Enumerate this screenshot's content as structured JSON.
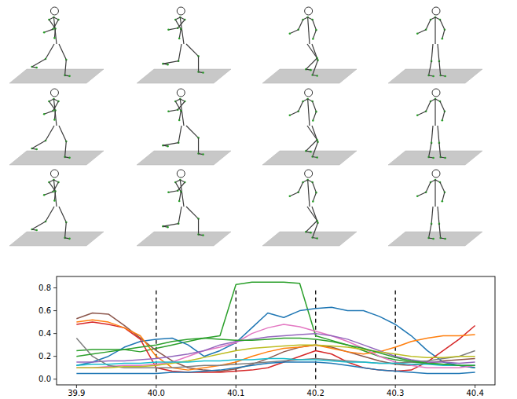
{
  "chart_data": {
    "type": "line",
    "x": [
      39.9,
      39.92,
      39.94,
      39.96,
      39.98,
      40.0,
      40.02,
      40.04,
      40.06,
      40.08,
      40.1,
      40.12,
      40.14,
      40.16,
      40.18,
      40.2,
      40.22,
      40.24,
      40.26,
      40.28,
      40.3,
      40.32,
      40.34,
      40.36,
      40.38,
      40.4
    ],
    "series": [
      {
        "color": "#2ca02c",
        "values": [
          0.25,
          0.26,
          0.26,
          0.26,
          0.24,
          0.27,
          0.3,
          0.33,
          0.36,
          0.38,
          0.83,
          0.85,
          0.85,
          0.85,
          0.84,
          0.38,
          0.34,
          0.3,
          0.25,
          0.2,
          0.17,
          0.15,
          0.14,
          0.13,
          0.12,
          0.1
        ]
      },
      {
        "color": "#1f77b4",
        "values": [
          0.12,
          0.15,
          0.2,
          0.28,
          0.33,
          0.35,
          0.36,
          0.3,
          0.2,
          0.25,
          0.32,
          0.45,
          0.58,
          0.54,
          0.6,
          0.62,
          0.63,
          0.6,
          0.6,
          0.55,
          0.48,
          0.38,
          0.25,
          0.15,
          0.12,
          0.1
        ]
      },
      {
        "color": "#8c564b",
        "values": [
          0.53,
          0.58,
          0.57,
          0.47,
          0.36,
          0.25,
          0.16,
          0.1,
          0.08,
          0.07,
          0.09,
          0.13,
          0.18,
          0.24,
          0.28,
          0.3,
          0.28,
          0.24,
          0.2,
          0.16,
          0.13,
          0.12,
          0.14,
          0.16,
          0.17,
          0.18
        ]
      },
      {
        "color": "#d62728",
        "values": [
          0.48,
          0.5,
          0.48,
          0.45,
          0.35,
          0.1,
          0.07,
          0.06,
          0.06,
          0.06,
          0.07,
          0.08,
          0.1,
          0.15,
          0.2,
          0.25,
          0.22,
          0.15,
          0.1,
          0.08,
          0.07,
          0.08,
          0.15,
          0.25,
          0.35,
          0.47
        ]
      },
      {
        "color": "#ff7f0e",
        "values": [
          0.5,
          0.52,
          0.5,
          0.45,
          0.38,
          0.2,
          0.1,
          0.08,
          0.1,
          0.12,
          0.15,
          0.2,
          0.24,
          0.27,
          0.28,
          0.3,
          0.27,
          0.24,
          0.22,
          0.24,
          0.28,
          0.33,
          0.36,
          0.38,
          0.38,
          0.39
        ]
      },
      {
        "color": "#e377c2",
        "values": [
          0.1,
          0.1,
          0.11,
          0.12,
          0.12,
          0.13,
          0.15,
          0.2,
          0.25,
          0.28,
          0.32,
          0.4,
          0.45,
          0.48,
          0.46,
          0.42,
          0.38,
          0.33,
          0.27,
          0.2,
          0.15,
          0.12,
          0.1,
          0.1,
          0.1,
          0.12
        ]
      },
      {
        "color": "#9467bd",
        "values": [
          0.15,
          0.15,
          0.16,
          0.16,
          0.17,
          0.18,
          0.2,
          0.22,
          0.25,
          0.3,
          0.33,
          0.35,
          0.37,
          0.38,
          0.39,
          0.4,
          0.38,
          0.35,
          0.3,
          0.25,
          0.2,
          0.17,
          0.15,
          0.15,
          0.14,
          0.15
        ]
      },
      {
        "color": "#7f7f7f",
        "values": [
          0.36,
          0.2,
          0.12,
          0.1,
          0.1,
          0.1,
          0.1,
          0.11,
          0.12,
          0.12,
          0.13,
          0.14,
          0.15,
          0.16,
          0.17,
          0.18,
          0.17,
          0.16,
          0.15,
          0.14,
          0.14,
          0.15,
          0.16,
          0.18,
          0.2,
          0.25
        ]
      },
      {
        "color": "#bcbd22",
        "values": [
          0.1,
          0.1,
          0.1,
          0.11,
          0.11,
          0.12,
          0.14,
          0.16,
          0.19,
          0.22,
          0.25,
          0.27,
          0.28,
          0.29,
          0.3,
          0.3,
          0.29,
          0.28,
          0.26,
          0.24,
          0.22,
          0.2,
          0.19,
          0.19,
          0.2,
          0.2
        ]
      },
      {
        "color": "#17becf",
        "values": [
          0.12,
          0.13,
          0.13,
          0.14,
          0.14,
          0.15,
          0.15,
          0.15,
          0.16,
          0.16,
          0.17,
          0.17,
          0.18,
          0.18,
          0.17,
          0.17,
          0.16,
          0.15,
          0.15,
          0.14,
          0.14,
          0.13,
          0.13,
          0.12,
          0.12,
          0.12
        ]
      },
      {
        "color": "#2ca02c",
        "values": [
          0.2,
          0.22,
          0.24,
          0.26,
          0.28,
          0.3,
          0.33,
          0.35,
          0.36,
          0.35,
          0.34,
          0.34,
          0.35,
          0.36,
          0.36,
          0.35,
          0.33,
          0.3,
          0.27,
          0.23,
          0.19,
          0.16,
          0.14,
          0.13,
          0.12,
          0.12
        ]
      },
      {
        "color": "#1f77b4",
        "values": [
          0.05,
          0.05,
          0.05,
          0.05,
          0.05,
          0.05,
          0.06,
          0.06,
          0.07,
          0.08,
          0.1,
          0.12,
          0.14,
          0.15,
          0.15,
          0.15,
          0.14,
          0.12,
          0.1,
          0.08,
          0.07,
          0.06,
          0.05,
          0.05,
          0.05,
          0.06
        ]
      }
    ],
    "xlim": [
      39.875,
      40.425
    ],
    "ylim": [
      -0.05,
      0.9
    ],
    "xticks": [
      39.9,
      {
        "value": 40,
        "label": "40.0"
      },
      40.1,
      40.2,
      40.3,
      40.4
    ],
    "yticks": [
      {
        "value": 0,
        "label": "0.0"
      },
      0.2,
      0.4,
      0.6,
      0.8
    ],
    "vlines": {
      "x": [
        40,
        40.1,
        40.2,
        40.3
      ],
      "ymin": 0,
      "ymax": 0.8
    },
    "grid": false
  }
}
